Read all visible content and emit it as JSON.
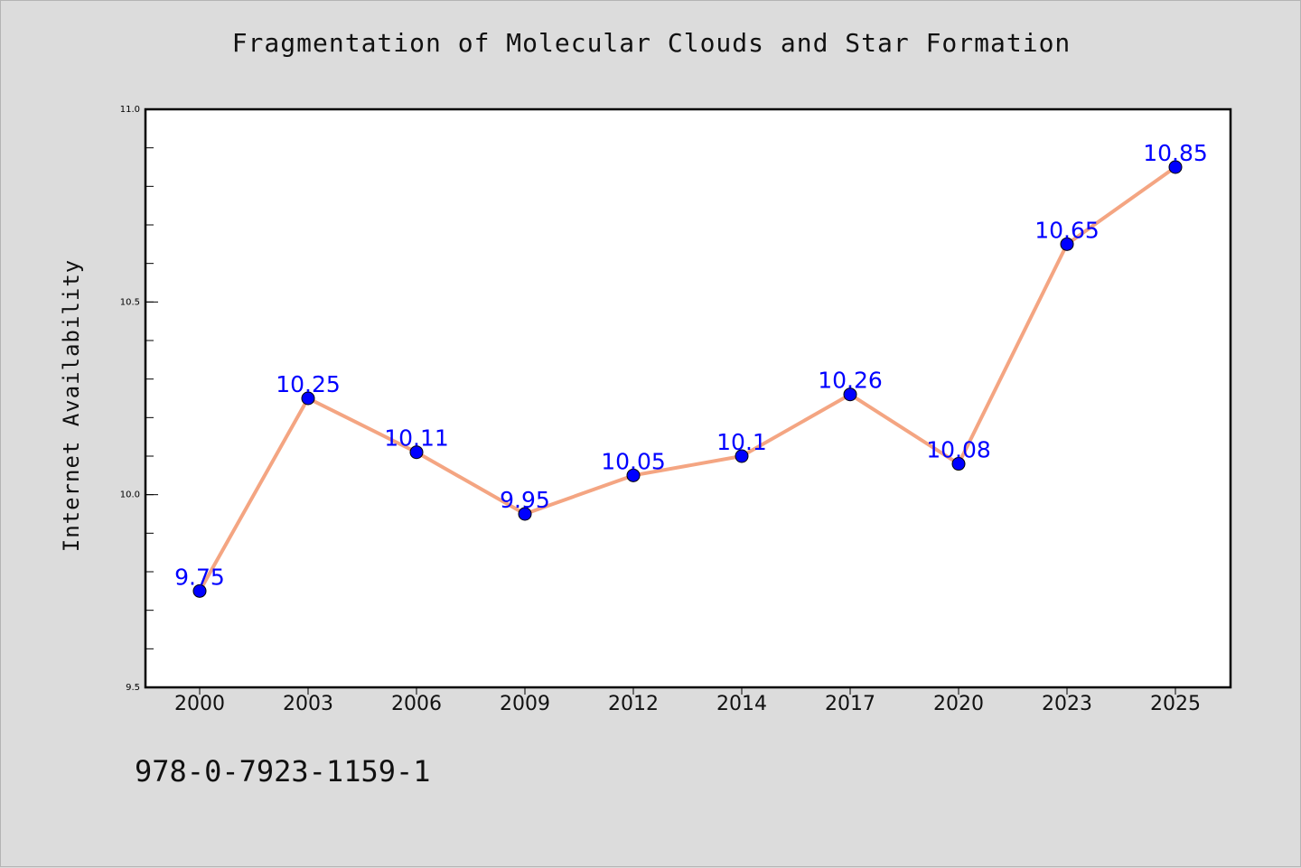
{
  "chart_data": {
    "type": "line",
    "title": "Fragmentation of Molecular Clouds and Star Formation",
    "xlabel": "",
    "ylabel": "Internet Availability",
    "categories": [
      "2000",
      "2003",
      "2006",
      "2009",
      "2012",
      "2014",
      "2017",
      "2020",
      "2023",
      "2025"
    ],
    "series": [
      {
        "values": [
          9.75,
          10.25,
          10.11,
          9.95,
          10.05,
          10.1,
          10.26,
          10.08,
          10.65,
          10.85
        ],
        "data_labels": [
          "9.75",
          "10.25",
          "10.11",
          "9.95",
          "10.05",
          "10.1",
          "10.26",
          "10.08",
          "10.65",
          "10.85"
        ],
        "line_color": "#f4a582",
        "marker_color": "#0000ff",
        "label_color": "#0000ff"
      }
    ],
    "ylim": [
      9.5,
      11.0
    ],
    "yticks": [
      "9.5",
      "10.0",
      "10.5",
      "11.0"
    ],
    "minor_ytick_step": 0.1,
    "grid": false,
    "legend": "none"
  },
  "footer": {
    "code": "978-0-7923-1159-1"
  }
}
